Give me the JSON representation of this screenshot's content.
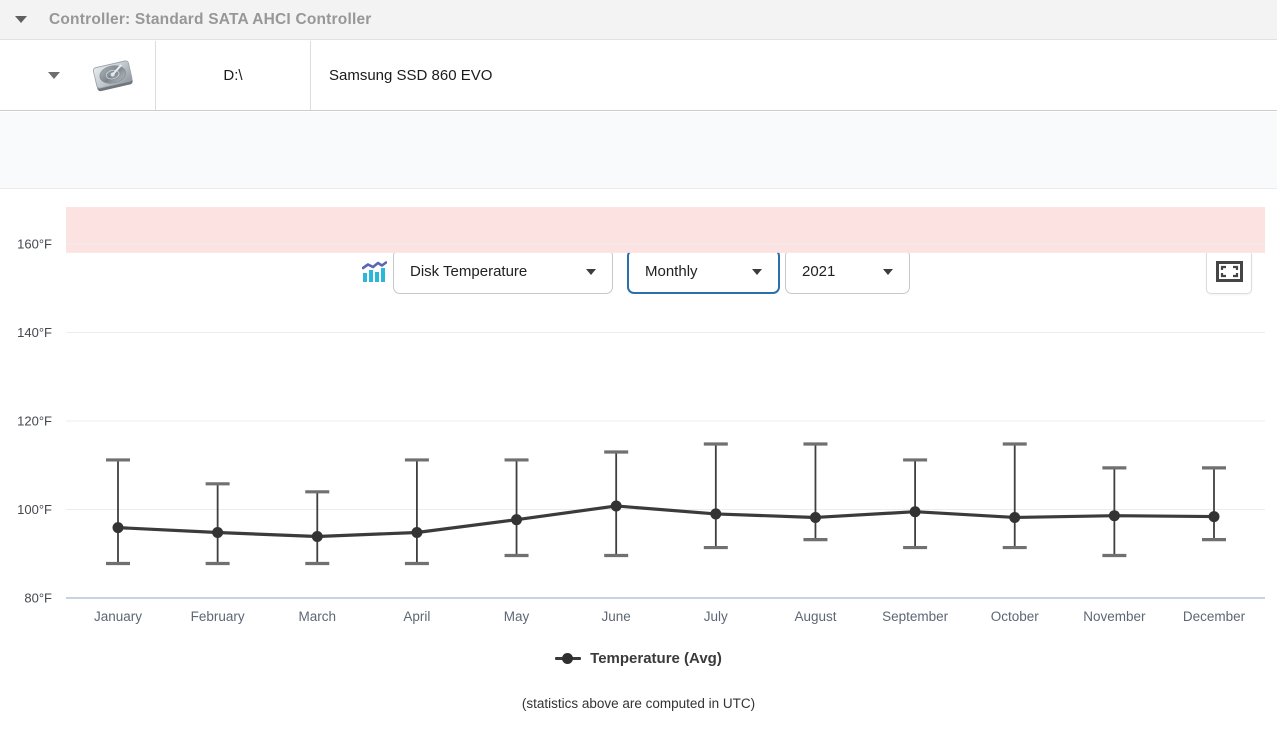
{
  "header": {
    "title": "Controller: Standard SATA AHCI Controller"
  },
  "disk": {
    "drive_letter": "D:\\",
    "model": "Samsung SSD 860 EVO"
  },
  "controls": {
    "metric_select": {
      "value": "Disk Temperature"
    },
    "period_select": {
      "value": "Monthly"
    },
    "year_select": {
      "value": "2021"
    }
  },
  "chart_data": {
    "type": "line",
    "title": "",
    "unit": "°F",
    "categories": [
      "January",
      "February",
      "March",
      "April",
      "May",
      "June",
      "July",
      "August",
      "September",
      "October",
      "November",
      "December"
    ],
    "series": [
      {
        "name": "Temperature (Avg)",
        "values": [
          95.9,
          94.8,
          93.9,
          94.8,
          97.7,
          100.8,
          99.0,
          98.2,
          99.5,
          98.2,
          98.6,
          98.4
        ]
      }
    ],
    "error_bars": {
      "high": [
        111.2,
        105.8,
        104.0,
        111.2,
        111.2,
        113.0,
        114.8,
        114.8,
        111.2,
        114.8,
        109.4,
        109.4
      ],
      "low": [
        87.8,
        87.8,
        87.8,
        87.8,
        89.6,
        89.6,
        91.4,
        93.2,
        91.4,
        91.4,
        89.6,
        93.2
      ]
    },
    "yticks": [
      80,
      100,
      120,
      140,
      160
    ],
    "ytick_labels": [
      "80°F",
      "100°F",
      "120°F",
      "140°F",
      "160°F"
    ],
    "ylim": [
      80,
      169
    ],
    "danger_zone": {
      "from": 158,
      "to": 169,
      "color": "#fce3e2"
    },
    "grid": "horizontal",
    "legend_position": "bottom",
    "colors": {
      "line": "#3b3b3b",
      "marker": "#333333",
      "whisker": "#3f3f3f",
      "whisker_cap": "#707070",
      "axis": "#c9d3e0",
      "gridline": "#ededed"
    }
  },
  "footer": {
    "note": "(statistics above are computed in UTC)"
  }
}
